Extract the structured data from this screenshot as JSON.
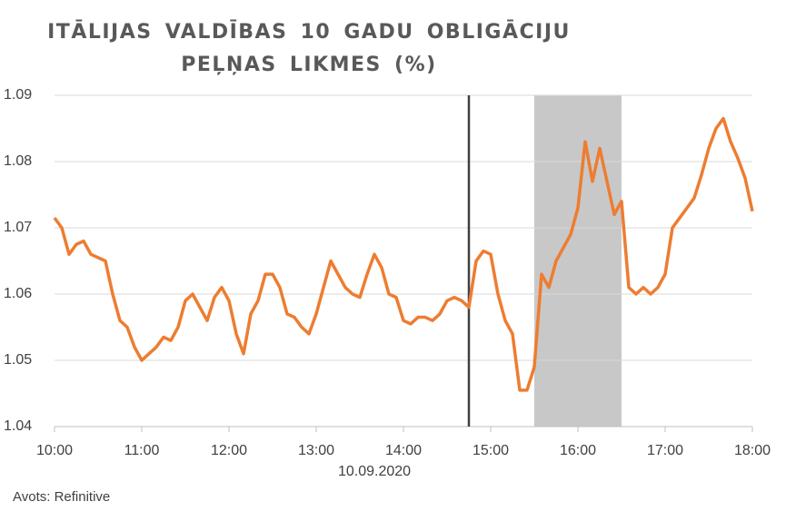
{
  "chart_data": {
    "type": "line",
    "title": "ITĀLIJAS VALDĪBAS 10 GADU OBLIGĀCIJU PEĻŅAS LIKMES (%)",
    "x_label": "10.09.2020",
    "source": "Avots: Refinitive",
    "x": [
      "10:00",
      "10:05",
      "10:10",
      "10:15",
      "10:20",
      "10:25",
      "10:30",
      "10:35",
      "10:40",
      "10:45",
      "10:50",
      "10:55",
      "11:00",
      "11:05",
      "11:10",
      "11:15",
      "11:20",
      "11:25",
      "11:30",
      "11:35",
      "11:40",
      "11:45",
      "11:50",
      "11:55",
      "12:00",
      "12:05",
      "12:10",
      "12:15",
      "12:20",
      "12:25",
      "12:30",
      "12:35",
      "12:40",
      "12:45",
      "12:50",
      "12:55",
      "13:00",
      "13:05",
      "13:10",
      "13:15",
      "13:20",
      "13:25",
      "13:30",
      "13:35",
      "13:40",
      "13:45",
      "13:50",
      "13:55",
      "14:00",
      "14:05",
      "14:10",
      "14:15",
      "14:20",
      "14:25",
      "14:30",
      "14:35",
      "14:40",
      "14:45",
      "14:50",
      "14:55",
      "15:00",
      "15:05",
      "15:10",
      "15:15",
      "15:20",
      "15:25",
      "15:30",
      "15:35",
      "15:40",
      "15:45",
      "15:50",
      "15:55",
      "16:00",
      "16:05",
      "16:10",
      "16:15",
      "16:20",
      "16:25",
      "16:30",
      "16:35",
      "16:40",
      "16:45",
      "16:50",
      "16:55",
      "17:00",
      "17:05",
      "17:10",
      "17:15",
      "17:20",
      "17:25",
      "17:30",
      "17:35",
      "17:40",
      "17:45",
      "17:50",
      "17:55",
      "18:00"
    ],
    "series": [
      {
        "color": "#ed7d31",
        "values": [
          1.0715,
          1.07,
          1.066,
          1.0675,
          1.068,
          1.066,
          1.0655,
          1.065,
          1.06,
          1.056,
          1.055,
          1.052,
          1.05,
          1.051,
          1.052,
          1.0535,
          1.053,
          1.055,
          1.059,
          1.06,
          1.058,
          1.056,
          1.0595,
          1.061,
          1.059,
          1.054,
          1.051,
          1.057,
          1.059,
          1.063,
          1.063,
          1.061,
          1.057,
          1.0565,
          1.055,
          1.054,
          1.057,
          1.061,
          1.065,
          1.063,
          1.061,
          1.06,
          1.0595,
          1.063,
          1.066,
          1.064,
          1.06,
          1.0595,
          1.056,
          1.0555,
          1.0565,
          1.0565,
          1.056,
          1.057,
          1.059,
          1.0595,
          1.059,
          1.058,
          1.065,
          1.0665,
          1.066,
          1.06,
          1.056,
          1.054,
          1.0455,
          1.0455,
          1.049,
          1.063,
          1.061,
          1.065,
          1.067,
          1.069,
          1.073,
          1.083,
          1.077,
          1.082,
          1.077,
          1.072,
          1.074,
          1.061,
          1.06,
          1.061,
          1.06,
          1.061,
          1.063,
          1.07,
          1.0715,
          1.073,
          1.0745,
          1.078,
          1.082,
          1.085,
          1.0865,
          1.083,
          1.0805,
          1.0775,
          1.0725
        ]
      }
    ],
    "vline": "14:45",
    "shaded": [
      "15:30",
      "16:30"
    ],
    "ylim": [
      1.04,
      1.09
    ],
    "yticks": [
      1.04,
      1.05,
      1.06,
      1.07,
      1.08,
      1.09
    ],
    "grid": true
  }
}
